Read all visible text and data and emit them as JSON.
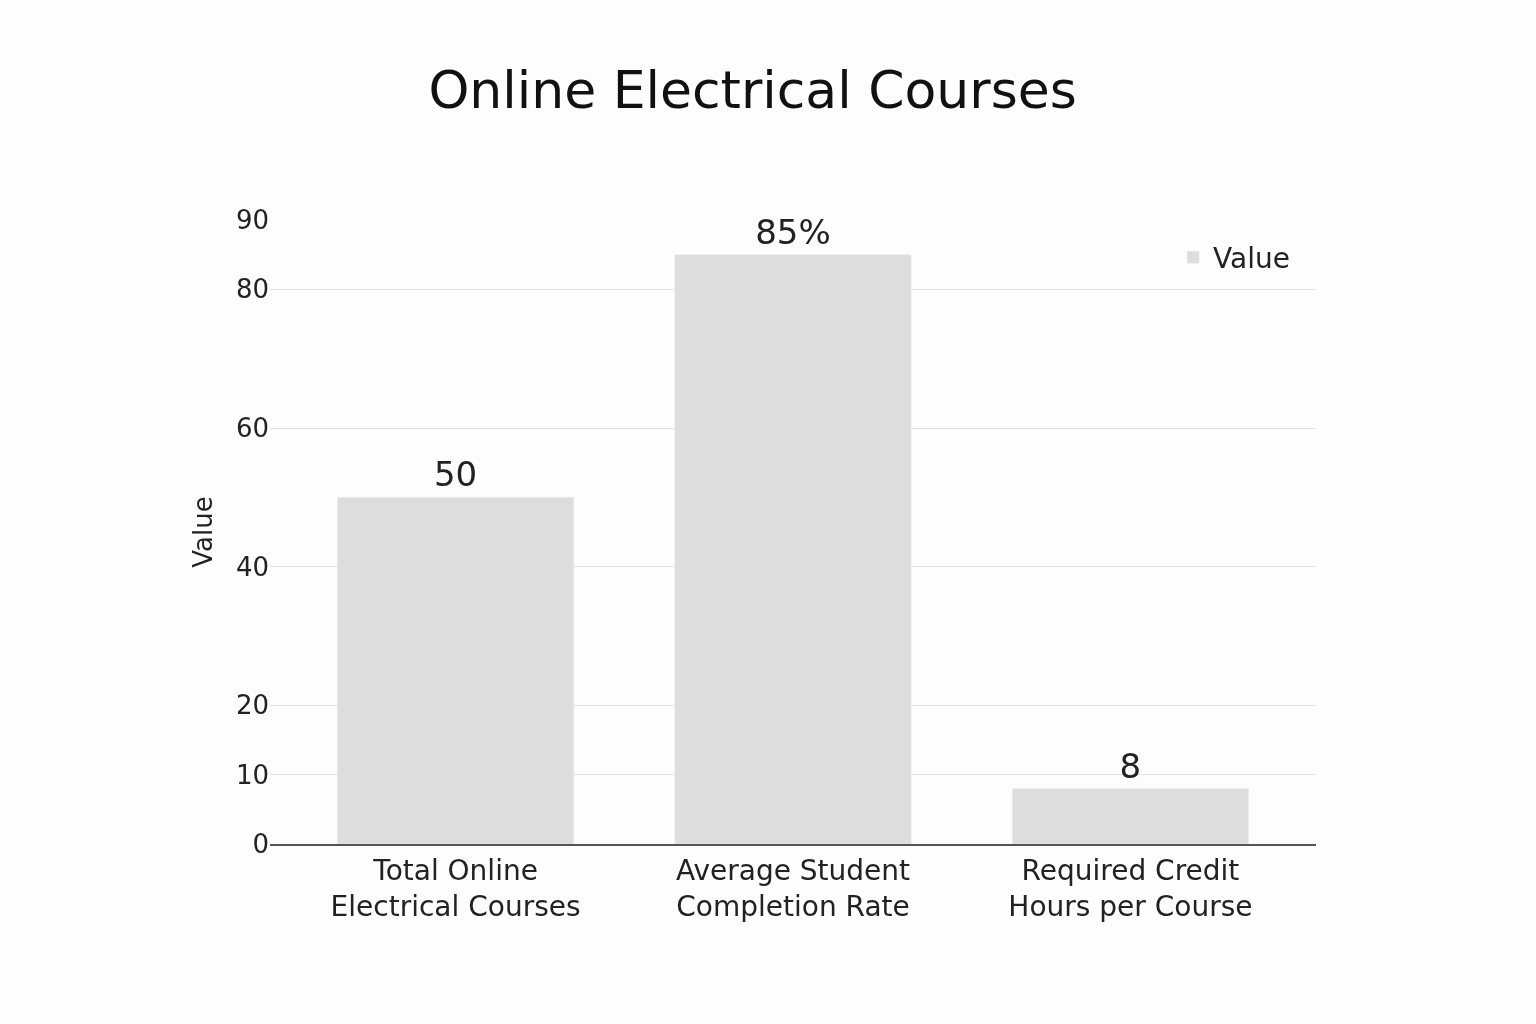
{
  "chart_data": {
    "type": "bar",
    "title": "Online Electrical Courses",
    "ylabel": "Value",
    "categories": [
      "Total Online\nElectrical Courses",
      "Average Student\nCompletion Rate",
      "Required Credit\nHours per Course"
    ],
    "series": [
      {
        "name": "Value",
        "color": "#dddddd",
        "values": [
          50,
          85,
          8
        ],
        "value_labels": [
          "50",
          "85%",
          "8"
        ]
      }
    ],
    "ylim": [
      0,
      90
    ],
    "yticks": [
      0,
      10,
      20,
      40,
      60,
      80,
      90
    ],
    "grid": "y",
    "legend": "top right"
  }
}
